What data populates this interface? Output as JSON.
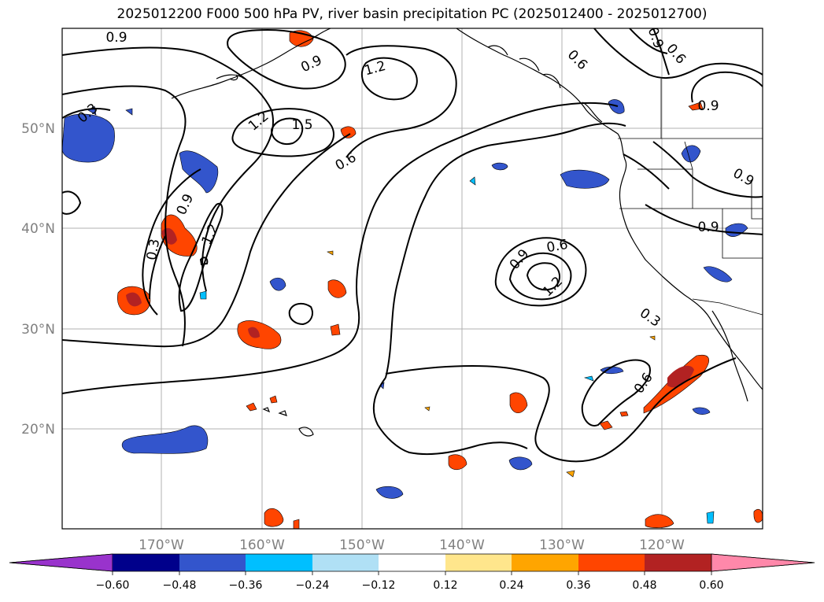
{
  "title": "2025012200 F000 500 hPa PV, river basin precipitation PC (2025012400 - 2025012700)",
  "map": {
    "lon_labels": [
      "170°W",
      "160°W",
      "150°W",
      "140°W",
      "130°W",
      "120°W"
    ],
    "lat_labels": [
      "50°N",
      "40°N",
      "30°N",
      "20°N"
    ],
    "contour_labels": {
      "c1": "0.9",
      "c2": "0.9",
      "c3": "1.2",
      "c4": "0.6",
      "c5": "0.9",
      "c6": "0.6",
      "c7": "0.9",
      "c8": "0.9",
      "c9": "1.2",
      "c10": "1.5",
      "c11": "0.6",
      "c12": "0.9",
      "c13": "1.2",
      "c14": "0.3",
      "c15": "0.3",
      "c16": "0.6",
      "c17": "0.9",
      "c18": "1.2",
      "c19": "0.3",
      "c20": "0.6",
      "c21": "0.9"
    }
  },
  "colorbar": {
    "ticks": [
      "−0.60",
      "−0.48",
      "−0.36",
      "−0.24",
      "−0.12",
      "0.12",
      "0.24",
      "0.36",
      "0.48",
      "0.60"
    ],
    "colors": [
      "#9933cc",
      "#00008b",
      "#3355cc",
      "#00bfff",
      "#b0e0f5",
      "#ffffff",
      "#ffe68c",
      "#ffa500",
      "#ff4500",
      "#b22222",
      "#ff88aa"
    ]
  }
}
